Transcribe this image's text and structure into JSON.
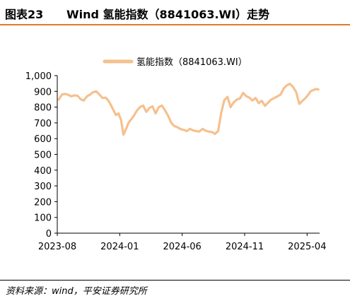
{
  "header": {
    "figure_number": "图表23",
    "title": "Wind 氢能指数（8841063.WI）走势"
  },
  "footer": {
    "source": "资料来源：wind，平安证券研究所"
  },
  "colors": {
    "series": "#f6c08e",
    "accent_rule": "#e07a2e",
    "axis": "#000000"
  },
  "chart_data": {
    "type": "line",
    "title": "",
    "xlabel": "",
    "ylabel": "",
    "ylim": [
      0,
      1000
    ],
    "yticks": [
      "0",
      "100",
      "200",
      "300",
      "400",
      "500",
      "600",
      "700",
      "800",
      "900",
      "1,000"
    ],
    "xticks": [
      "2023-08",
      "2024-01",
      "2024-06",
      "2024-11",
      "2025-04"
    ],
    "xlim": [
      "2023-08",
      "2025-05"
    ],
    "grid": false,
    "legend_position": "top-center",
    "series": [
      {
        "name": "氢能指数（8841063.WI）",
        "x": [
          "2023-08",
          "2023-08",
          "2023-08",
          "2023-08",
          "2023-09",
          "2023-09",
          "2023-09",
          "2023-09",
          "2023-10",
          "2023-10",
          "2023-10",
          "2023-10",
          "2023-11",
          "2023-11",
          "2023-11",
          "2023-11",
          "2023-12",
          "2023-12",
          "2023-12",
          "2023-12",
          "2023-12",
          "2024-01",
          "2024-01",
          "2024-01",
          "2024-01",
          "2024-01",
          "2024-02",
          "2024-02",
          "2024-02",
          "2024-02",
          "2024-03",
          "2024-03",
          "2024-03",
          "2024-03",
          "2024-04",
          "2024-04",
          "2024-04",
          "2024-04",
          "2024-05",
          "2024-05",
          "2024-05",
          "2024-05",
          "2024-06",
          "2024-06",
          "2024-06",
          "2024-06",
          "2024-07",
          "2024-07",
          "2024-07",
          "2024-07",
          "2024-08",
          "2024-08",
          "2024-08",
          "2024-08",
          "2024-09",
          "2024-09",
          "2024-09",
          "2024-09",
          "2024-10",
          "2024-10",
          "2024-10",
          "2024-10",
          "2024-11",
          "2024-11",
          "2024-11",
          "2024-11",
          "2024-12",
          "2024-12",
          "2024-12",
          "2024-12",
          "2025-01",
          "2025-01",
          "2025-01",
          "2025-01",
          "2025-02",
          "2025-02",
          "2025-02",
          "2025-02",
          "2025-03",
          "2025-03",
          "2025-03",
          "2025-03",
          "2025-04",
          "2025-04",
          "2025-04",
          "2025-04",
          "2025-04"
        ],
        "values": [
          848,
          880,
          884,
          878,
          868,
          875,
          872,
          850,
          842,
          868,
          880,
          895,
          900,
          880,
          858,
          860,
          840,
          812,
          780,
          750,
          760,
          720,
          625,
          660,
          700,
          720,
          745,
          778,
          800,
          810,
          770,
          795,
          805,
          760,
          800,
          810,
          780,
          745,
          700,
          680,
          672,
          660,
          655,
          648,
          662,
          652,
          648,
          645,
          662,
          650,
          645,
          642,
          630,
          648,
          765,
          845,
          865,
          800,
          830,
          848,
          855,
          890,
          870,
          860,
          842,
          858,
          825,
          840,
          808,
          828,
          848,
          858,
          868,
          880,
          918,
          938,
          948,
          928,
          895,
          820,
          840,
          858,
          880,
          902,
          908,
          915,
          912
        ]
      }
    ]
  }
}
